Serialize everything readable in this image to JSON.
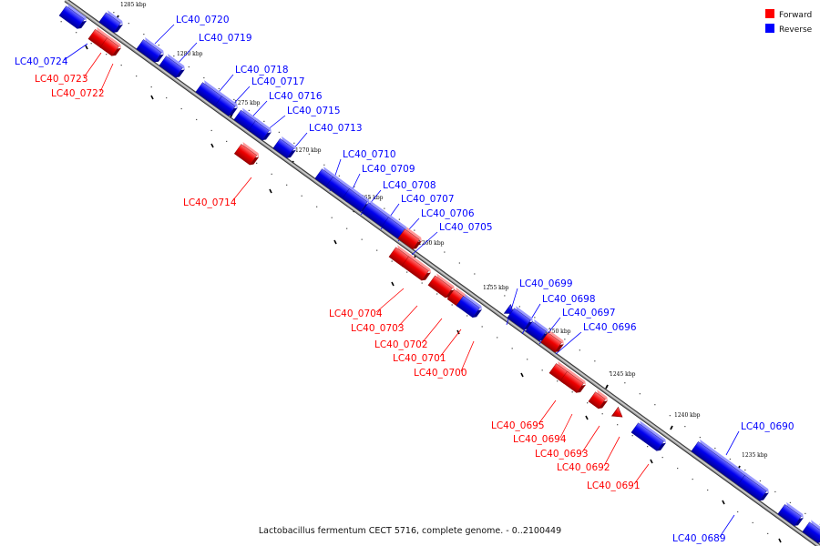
{
  "caption": "Lactobacillus fermentum CECT 5716, complete genome. - 0..2100449",
  "legend": [
    {
      "name": "Forward",
      "color": "#ff0000"
    },
    {
      "name": "Reverse",
      "color": "#0000ff"
    }
  ],
  "colors": {
    "forward": "#ff0000",
    "reverse": "#0000ff",
    "backbone": "#777777"
  },
  "scale_ticks": [
    "1285 kbp",
    "1280 kbp",
    "1275 kbp",
    "1270 kbp",
    "1265 kbp",
    "1260 kbp",
    "1255 kbp",
    "1250 kbp",
    "1245 kbp",
    "1240 kbp",
    "1235 kbp"
  ],
  "genes": [
    {
      "name": "LC40_0724",
      "strand": "reverse"
    },
    {
      "name": "LC40_0723",
      "strand": "forward"
    },
    {
      "name": "LC40_0722",
      "strand": "forward"
    },
    {
      "name": "LC40_0720",
      "strand": "reverse"
    },
    {
      "name": "LC40_0719",
      "strand": "reverse"
    },
    {
      "name": "LC40_0718",
      "strand": "reverse"
    },
    {
      "name": "LC40_0717",
      "strand": "reverse"
    },
    {
      "name": "LC40_0716",
      "strand": "reverse"
    },
    {
      "name": "LC40_0715",
      "strand": "reverse"
    },
    {
      "name": "LC40_0713",
      "strand": "reverse"
    },
    {
      "name": "LC40_0714",
      "strand": "forward"
    },
    {
      "name": "LC40_0710",
      "strand": "reverse"
    },
    {
      "name": "LC40_0709",
      "strand": "reverse"
    },
    {
      "name": "LC40_0708",
      "strand": "reverse"
    },
    {
      "name": "LC40_0707",
      "strand": "reverse"
    },
    {
      "name": "LC40_0706",
      "strand": "reverse"
    },
    {
      "name": "LC40_0705",
      "strand": "reverse"
    },
    {
      "name": "LC40_0704",
      "strand": "forward"
    },
    {
      "name": "LC40_0703",
      "strand": "forward"
    },
    {
      "name": "LC40_0702",
      "strand": "forward"
    },
    {
      "name": "LC40_0701",
      "strand": "forward"
    },
    {
      "name": "LC40_0700",
      "strand": "forward"
    },
    {
      "name": "LC40_0699",
      "strand": "reverse"
    },
    {
      "name": "LC40_0698",
      "strand": "reverse"
    },
    {
      "name": "LC40_0697",
      "strand": "reverse"
    },
    {
      "name": "LC40_0696",
      "strand": "reverse"
    },
    {
      "name": "LC40_0695",
      "strand": "forward"
    },
    {
      "name": "LC40_0694",
      "strand": "forward"
    },
    {
      "name": "LC40_0693",
      "strand": "forward"
    },
    {
      "name": "LC40_0692",
      "strand": "forward"
    },
    {
      "name": "LC40_0691",
      "strand": "forward"
    },
    {
      "name": "LC40_0690",
      "strand": "reverse"
    },
    {
      "name": "LC40_0689",
      "strand": "reverse"
    }
  ]
}
